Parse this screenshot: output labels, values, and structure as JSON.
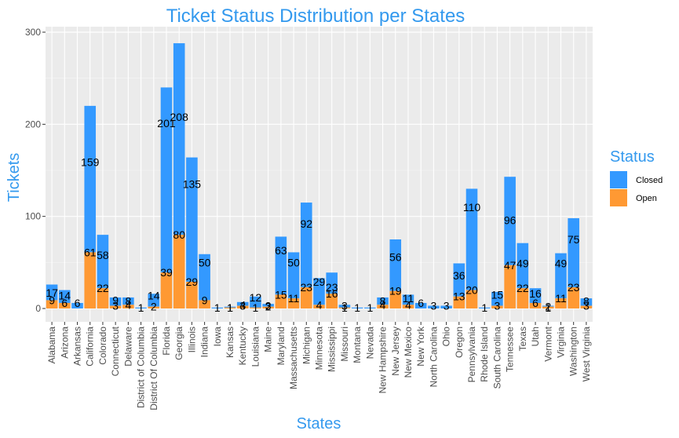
{
  "chart_data": {
    "type": "bar",
    "stacked": true,
    "title": "Ticket Status Distribution per States",
    "xlabel": "States",
    "ylabel": "Tickets",
    "ylim": [
      0,
      300
    ],
    "yticks": [
      0,
      100,
      200,
      300
    ],
    "grid": true,
    "legend_position": "right",
    "legend_title": "Status",
    "categories": [
      "Alabama",
      "Arizona",
      "Arkansas",
      "California",
      "Colorado",
      "Connecticut",
      "Delaware",
      "District of Columbia",
      "District Of Columbia",
      "Florida",
      "Georgia",
      "Illinois",
      "Indiana",
      "Iowa",
      "Kansas",
      "Kentucky",
      "Louisiana",
      "Maine",
      "Maryland",
      "Massachusetts",
      "Michigan",
      "Minnesota",
      "Mississippi",
      "Missouri",
      "Montana",
      "Nevada",
      "New Hampshire",
      "New Jersey",
      "New Mexico",
      "New York",
      "North Carolina",
      "Ohio",
      "Oregon",
      "Pennsylvania",
      "Rhode Island",
      "South Carolina",
      "Tennessee",
      "Texas",
      "Utah",
      "Vermont",
      "Virginia",
      "Washington",
      "West Virginia"
    ],
    "series": [
      {
        "name": "Open",
        "color": "#ff9933",
        "values": [
          9,
          6,
          0,
          61,
          22,
          3,
          4,
          0,
          2,
          39,
          80,
          29,
          9,
          0,
          1,
          3,
          1,
          2,
          15,
          11,
          23,
          4,
          16,
          1,
          0,
          0,
          4,
          19,
          4,
          0,
          0,
          0,
          13,
          20,
          0,
          3,
          47,
          22,
          6,
          2,
          11,
          23,
          3
        ]
      },
      {
        "name": "Closed",
        "color": "#3399ff",
        "values": [
          17,
          14,
          6,
          159,
          58,
          9,
          8,
          1,
          14,
          201,
          208,
          135,
          50,
          1,
          1,
          4,
          12,
          3,
          63,
          50,
          92,
          29,
          23,
          3,
          1,
          1,
          8,
          56,
          11,
          6,
          3,
          3,
          36,
          110,
          1,
          15,
          96,
          49,
          16,
          1,
          49,
          75,
          8
        ]
      }
    ]
  }
}
